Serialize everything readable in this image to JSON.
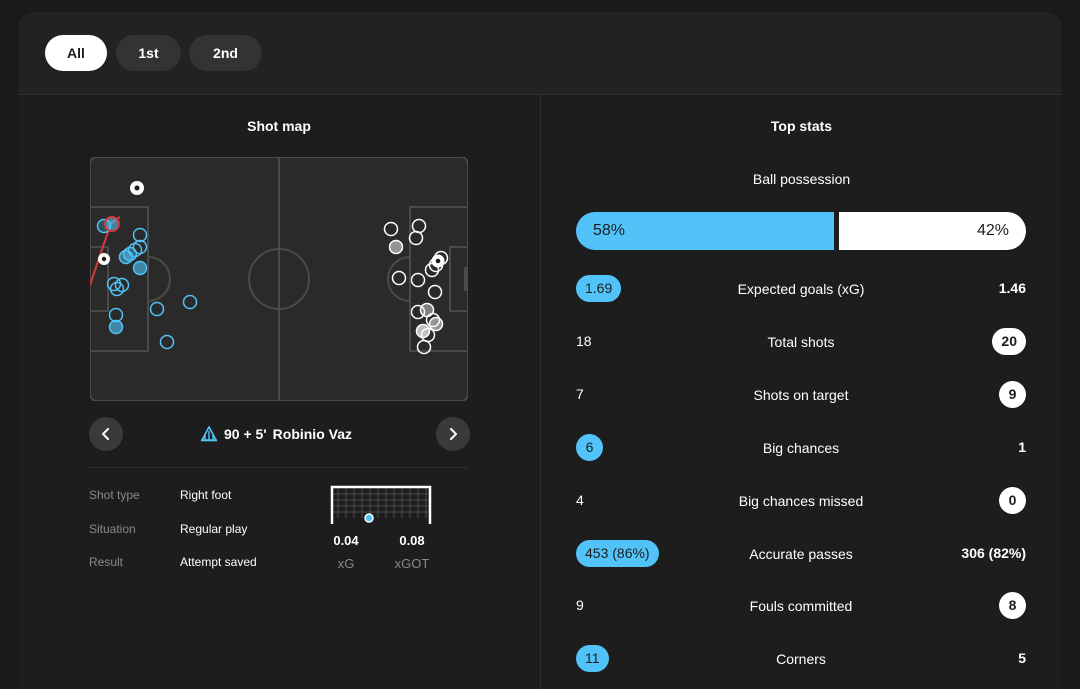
{
  "tabs": [
    {
      "label": "All",
      "active": true
    },
    {
      "label": "1st",
      "active": false
    },
    {
      "label": "2nd",
      "active": false
    }
  ],
  "shot_map": {
    "title": "Shot map",
    "player": {
      "minute": "90 + 5'",
      "name": "Robinio Vaz",
      "team_icon": "marseille-crest-icon"
    },
    "details": [
      {
        "label": "Shot type",
        "value": "Right foot"
      },
      {
        "label": "Situation",
        "value": "Regular play"
      },
      {
        "label": "Result",
        "value": "Attempt saved"
      }
    ],
    "xg": {
      "value": "0.04",
      "label": "xG"
    },
    "xgot": {
      "value": "0.08",
      "label": "xGOT"
    }
  },
  "top_stats": {
    "title": "Top stats",
    "possession": {
      "label": "Ball possession",
      "home": "58%",
      "away": "42%",
      "home_fraction": 0.58
    },
    "rows": [
      {
        "label": "Expected goals (xG)",
        "home": "1.69",
        "away": "1.46",
        "highlight": "home"
      },
      {
        "label": "Total shots",
        "home": "18",
        "away": "20",
        "highlight": "away"
      },
      {
        "label": "Shots on target",
        "home": "7",
        "away": "9",
        "highlight": "away"
      },
      {
        "label": "Big chances",
        "home": "6",
        "away": "1",
        "highlight": "home"
      },
      {
        "label": "Big chances missed",
        "home": "4",
        "away": "0",
        "highlight": "away"
      },
      {
        "label": "Accurate passes",
        "home": "453 (86%)",
        "away": "306 (82%)",
        "highlight": "home"
      },
      {
        "label": "Fouls committed",
        "home": "9",
        "away": "8",
        "highlight": "away"
      },
      {
        "label": "Corners",
        "home": "11",
        "away": "5",
        "highlight": "home"
      }
    ]
  },
  "colors": {
    "home": "#52c3f9",
    "away": "#ffffff",
    "card_bg": "#1d1d1d",
    "pitch_bg": "#2a2a2a",
    "pitch_line": "#4a4a4a"
  }
}
